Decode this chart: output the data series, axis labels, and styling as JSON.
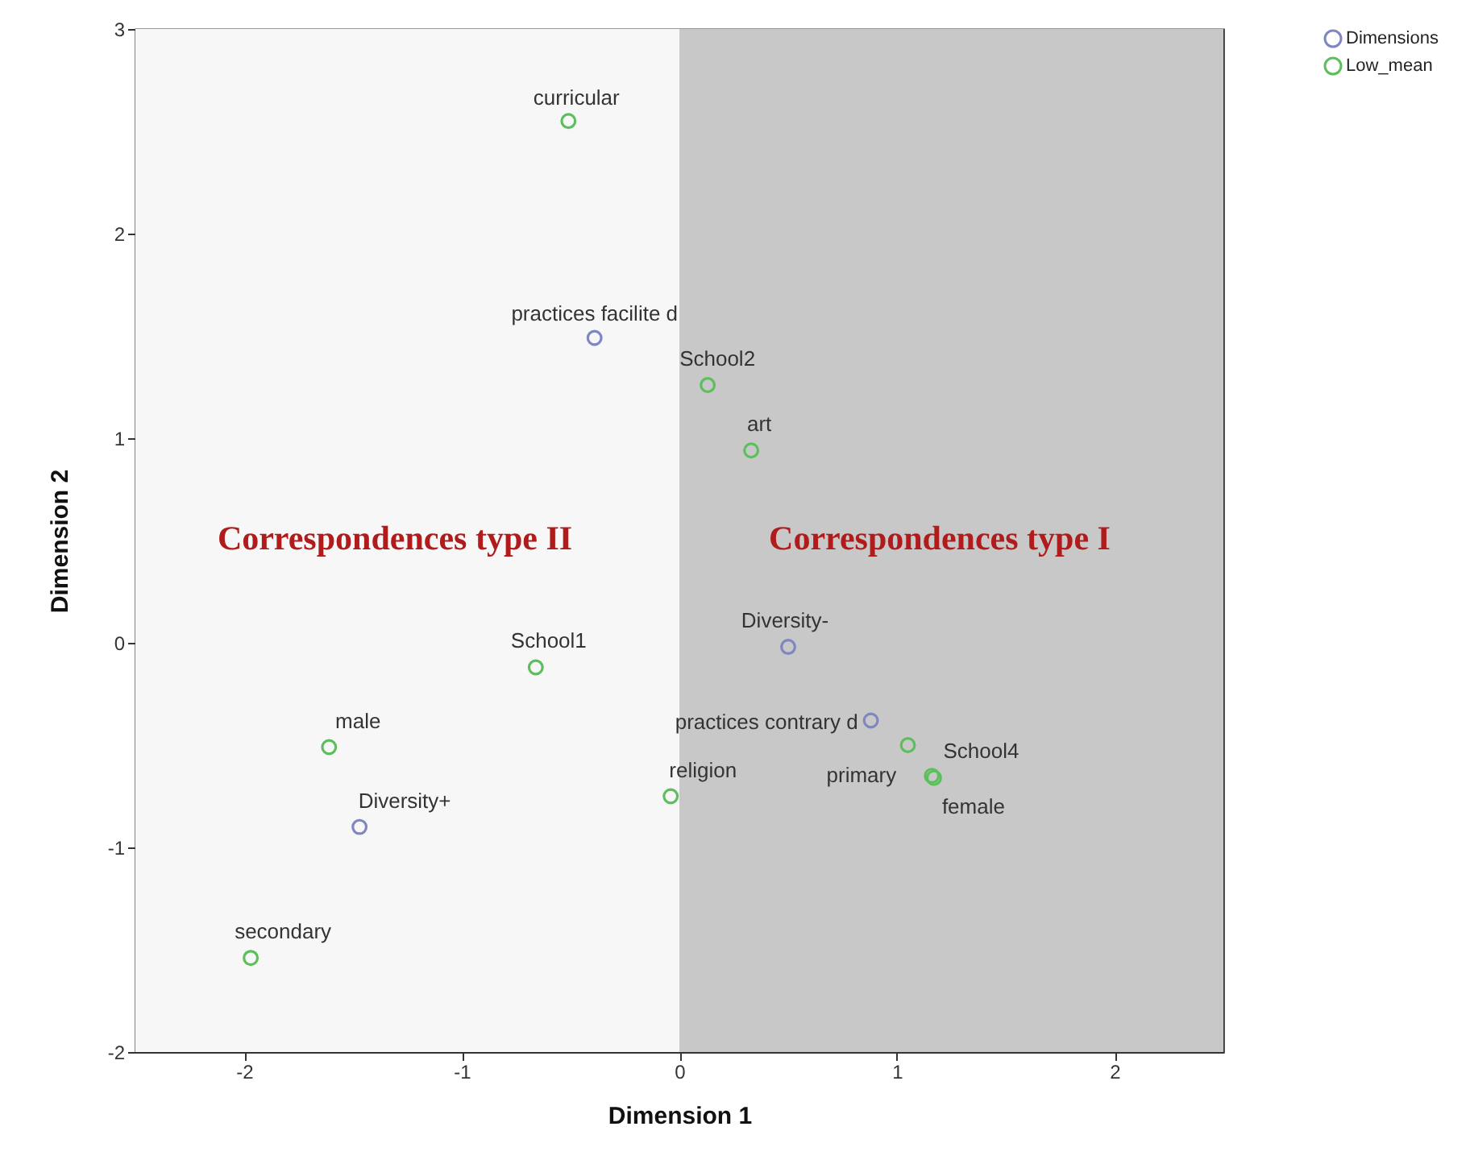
{
  "chart_data": {
    "type": "scatter",
    "xlabel": "Dimension 1",
    "ylabel": "Dimension 2",
    "xlim": [
      -2.5,
      2.5
    ],
    "xticks": [
      -2,
      -1,
      0,
      1,
      2
    ],
    "ylim": [
      -2,
      3
    ],
    "yticks": [
      -2,
      -1,
      0,
      1,
      2,
      3
    ],
    "grid": false,
    "marker": "circle",
    "legend": "right",
    "bands": [
      {
        "axis": "x",
        "from": -2.5,
        "to": 0,
        "color": "#f7f7f7"
      },
      {
        "axis": "x",
        "from": 0,
        "to": 2.5,
        "color": "#c8c8c8"
      }
    ],
    "series": [
      {
        "name": "Dimensions",
        "color": "#7f86c2",
        "x": [
          -0.39,
          0.5,
          0.88,
          -1.47
        ],
        "values": [
          1.49,
          -0.02,
          -0.38,
          -0.9
        ]
      },
      {
        "name": "Low_mean",
        "color": "#5cbf5c",
        "x": [
          -0.51,
          0.13,
          0.33,
          -0.66,
          -0.04,
          1.05,
          1.16,
          1.17,
          -1.61,
          -1.97
        ],
        "values": [
          2.55,
          1.26,
          0.94,
          -0.12,
          -0.75,
          -0.5,
          -0.65,
          -0.66,
          -0.51,
          -1.54
        ]
      }
    ],
    "annotations": [
      {
        "text": "curricular",
        "x": -0.51,
        "y": 2.55
      },
      {
        "text": "practices facilite d",
        "x": -0.39,
        "y": 1.49
      },
      {
        "text": "School2",
        "x": 0.13,
        "y": 1.26
      },
      {
        "text": "art",
        "x": 0.33,
        "y": 0.94
      },
      {
        "text": "Diversity-",
        "x": 0.5,
        "y": -0.02
      },
      {
        "text": "School1",
        "x": -0.66,
        "y": -0.12
      },
      {
        "text": "practices contrary d",
        "x": 0.88,
        "y": -0.38
      },
      {
        "text": "School4",
        "x": 1.05,
        "y": -0.5
      },
      {
        "text": "primary",
        "x": 1.16,
        "y": -0.65
      },
      {
        "text": "female",
        "x": 1.17,
        "y": -0.66
      },
      {
        "text": "male",
        "x": -1.61,
        "y": -0.51
      },
      {
        "text": "Diversity+",
        "x": -1.47,
        "y": -0.9
      },
      {
        "text": "religion",
        "x": -0.04,
        "y": -0.75
      },
      {
        "text": "secondary",
        "x": -1.97,
        "y": -1.54
      },
      "Correspondences type II",
      "Correspondences type I"
    ]
  }
}
